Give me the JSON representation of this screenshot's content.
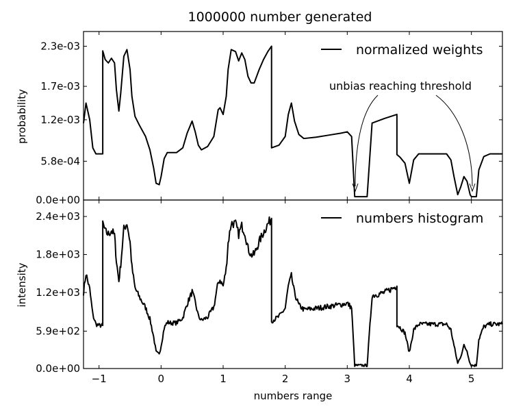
{
  "chart_data": [
    {
      "type": "line",
      "title": "1000000 number generated",
      "xlabel": "",
      "ylabel": "probability",
      "xlim": [
        -1.25,
        5.5
      ],
      "ylim": [
        0,
        0.00252
      ],
      "yticks": [
        0,
        0.00058,
        0.0012,
        0.0017,
        0.0023
      ],
      "ytick_labels": [
        "0.0e+00",
        "5.8e-04",
        "1.2e-03",
        "1.7e-03",
        "2.3e-03"
      ],
      "legend": "top-right",
      "series": [
        {
          "name": "normalized weights",
          "color": "#000000",
          "x": [
            -1.25,
            -1.21,
            -1.15,
            -1.1,
            -1.05,
            -1.0,
            -0.94,
            -0.94,
            -0.9,
            -0.85,
            -0.8,
            -0.75,
            -0.72,
            -0.68,
            -0.65,
            -0.6,
            -0.55,
            -0.5,
            -0.47,
            -0.42,
            -0.35,
            -0.25,
            -0.18,
            -0.12,
            -0.08,
            -0.03,
            0.0,
            0.05,
            0.1,
            0.15,
            0.25,
            0.35,
            0.42,
            0.5,
            0.55,
            0.6,
            0.65,
            0.75,
            0.85,
            0.92,
            0.95,
            1.0,
            1.05,
            1.08,
            1.13,
            1.2,
            1.25,
            1.3,
            1.35,
            1.4,
            1.45,
            1.5,
            1.58,
            1.65,
            1.72,
            1.78,
            1.78,
            1.9,
            2.0,
            2.05,
            2.1,
            2.15,
            2.22,
            2.3,
            2.5,
            2.7,
            2.9,
            3.0,
            3.07,
            3.12,
            3.25,
            3.32,
            3.4,
            3.6,
            3.8,
            3.8,
            3.85,
            3.93,
            4.0,
            4.07,
            4.15,
            4.4,
            4.6,
            4.67,
            4.72,
            4.78,
            4.83,
            4.88,
            4.93,
            4.98,
            5.0,
            5.05,
            5.08,
            5.12,
            5.2,
            5.3,
            5.5
          ],
          "y": [
            0.00115,
            0.00145,
            0.0012,
            0.00078,
            0.00069,
            0.00069,
            0.00069,
            0.00223,
            0.0021,
            0.00205,
            0.00212,
            0.00205,
            0.00165,
            0.00133,
            0.0016,
            0.00215,
            0.00225,
            0.00195,
            0.00155,
            0.00125,
            0.00112,
            0.00095,
            0.00075,
            0.00048,
            0.00025,
            0.00023,
            0.00035,
            0.00062,
            0.00071,
            0.00071,
            0.00071,
            0.00078,
            0.001,
            0.00118,
            0.00102,
            0.00082,
            0.00075,
            0.0008,
            0.00095,
            0.00135,
            0.00138,
            0.00128,
            0.00155,
            0.00195,
            0.00225,
            0.00222,
            0.00208,
            0.0022,
            0.0021,
            0.00185,
            0.00175,
            0.00175,
            0.00195,
            0.0021,
            0.00222,
            0.0023,
            0.00078,
            0.00082,
            0.00095,
            0.00128,
            0.00145,
            0.00118,
            0.00098,
            0.00092,
            0.00094,
            0.00097,
            0.001,
            0.00102,
            0.00095,
            5e-05,
            5e-05,
            5e-05,
            0.00115,
            0.00122,
            0.00128,
            0.00068,
            0.00064,
            0.00055,
            0.00025,
            0.0006,
            0.00069,
            0.00069,
            0.00069,
            0.0006,
            0.00035,
            8e-05,
            0.0002,
            0.00035,
            0.00028,
            8e-05,
            5e-05,
            5e-05,
            5e-05,
            0.00045,
            0.00065,
            0.00069,
            0.00069
          ]
        }
      ],
      "annotations": [
        {
          "text": "unbias reaching threshold",
          "targets": [
            [
              3.13,
              5e-05
            ],
            [
              5.03,
              5e-05
            ]
          ]
        }
      ]
    },
    {
      "type": "line",
      "title": "",
      "xlabel": "numbers range",
      "ylabel": "intensity",
      "xlim": [
        -1.25,
        5.5
      ],
      "ylim": [
        0,
        2660
      ],
      "xticks": [
        -1,
        0,
        1,
        2,
        3,
        4,
        5
      ],
      "xtick_labels": [
        "−1",
        "0",
        "1",
        "2",
        "3",
        "4",
        "5"
      ],
      "yticks": [
        0,
        590,
        1200,
        1800,
        2400
      ],
      "ytick_labels": [
        "0.0e+00",
        "5.9e+02",
        "1.2e+03",
        "1.8e+03",
        "2.4e+03"
      ],
      "legend": "top-right",
      "series": [
        {
          "name": "numbers histogram",
          "color": "#000000",
          "noisy": true,
          "x": [
            -1.25,
            -1.21,
            -1.15,
            -1.1,
            -1.05,
            -1.0,
            -0.94,
            -0.94,
            -0.9,
            -0.85,
            -0.8,
            -0.75,
            -0.72,
            -0.68,
            -0.65,
            -0.6,
            -0.55,
            -0.5,
            -0.47,
            -0.42,
            -0.35,
            -0.25,
            -0.18,
            -0.12,
            -0.08,
            -0.03,
            0.0,
            0.05,
            0.1,
            0.15,
            0.25,
            0.35,
            0.42,
            0.5,
            0.55,
            0.6,
            0.65,
            0.75,
            0.85,
            0.92,
            0.95,
            1.0,
            1.05,
            1.08,
            1.13,
            1.2,
            1.25,
            1.3,
            1.35,
            1.4,
            1.45,
            1.5,
            1.58,
            1.65,
            1.72,
            1.78,
            1.78,
            1.9,
            2.0,
            2.05,
            2.1,
            2.15,
            2.22,
            2.3,
            2.5,
            2.7,
            2.9,
            3.0,
            3.07,
            3.12,
            3.25,
            3.32,
            3.4,
            3.6,
            3.8,
            3.8,
            3.85,
            3.93,
            4.0,
            4.07,
            4.15,
            4.4,
            4.6,
            4.67,
            4.72,
            4.78,
            4.83,
            4.88,
            4.93,
            4.98,
            5.0,
            5.05,
            5.08,
            5.12,
            5.2,
            5.3,
            5.5
          ],
          "y": [
            1200,
            1500,
            1250,
            850,
            700,
            680,
            680,
            2300,
            2160,
            2120,
            2180,
            2100,
            1700,
            1380,
            1650,
            2200,
            2300,
            2000,
            1600,
            1270,
            1130,
            960,
            780,
            500,
            260,
            220,
            360,
            640,
            730,
            720,
            720,
            800,
            1020,
            1210,
            1050,
            830,
            760,
            810,
            970,
            1360,
            1400,
            1300,
            1580,
            1980,
            2300,
            2280,
            2120,
            2250,
            2150,
            1900,
            1790,
            1800,
            2000,
            2150,
            2280,
            2370,
            750,
            820,
            950,
            1300,
            1460,
            1190,
            1000,
            930,
            950,
            980,
            1010,
            1030,
            960,
            50,
            50,
            50,
            1150,
            1200,
            1300,
            690,
            650,
            560,
            250,
            610,
            700,
            700,
            700,
            610,
            360,
            80,
            200,
            360,
            280,
            80,
            50,
            50,
            50,
            460,
            660,
            700,
            700
          ]
        }
      ]
    }
  ]
}
